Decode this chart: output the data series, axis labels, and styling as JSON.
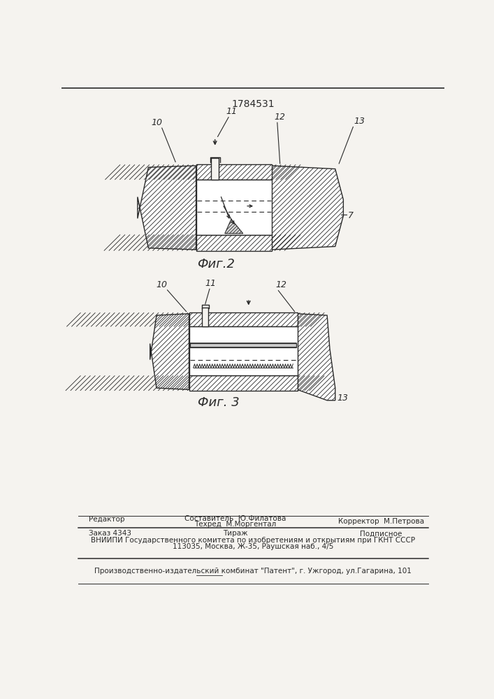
{
  "patent_number": "1784531",
  "fig2_caption": "Фиг.2",
  "fig3_caption": "Фиг. 3",
  "footer_line1_left": "Редактор",
  "footer_line1_center": "Составитель  Ю.Филатова",
  "footer_line2_center": "Техред  М.Моргентал",
  "footer_line2_right": "Корректор  М.Петрова",
  "footer_line3_left": "Заказ 4343",
  "footer_line3_center": "Тираж",
  "footer_line3_right": "Подписное",
  "footer_line4": "ВНИИПИ Государственного комитета по изобретениям и открытиям при ГКНТ СССР",
  "footer_line5": "113035, Москва, Ж-35, Раушская наб., 4/5",
  "footer_line6": "Производственно-издательский комбинат \"Патент\", г. Ужгород, ул.Гагарина, 101",
  "bg_color": "#f5f3ef",
  "line_color": "#2a2a2a"
}
